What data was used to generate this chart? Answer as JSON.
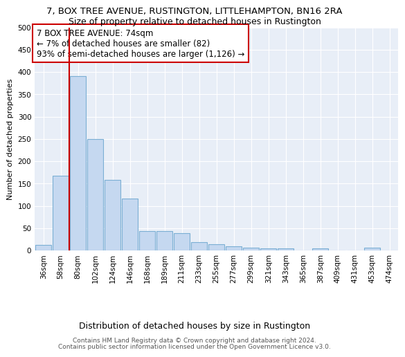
{
  "title1": "7, BOX TREE AVENUE, RUSTINGTON, LITTLEHAMPTON, BN16 2RA",
  "title2": "Size of property relative to detached houses in Rustington",
  "xlabel": "Distribution of detached houses by size in Rustington",
  "ylabel": "Number of detached properties",
  "categories": [
    "36sqm",
    "58sqm",
    "80sqm",
    "102sqm",
    "124sqm",
    "146sqm",
    "168sqm",
    "189sqm",
    "211sqm",
    "233sqm",
    "255sqm",
    "277sqm",
    "299sqm",
    "321sqm",
    "343sqm",
    "365sqm",
    "387sqm",
    "409sqm",
    "431sqm",
    "453sqm",
    "474sqm"
  ],
  "values": [
    13,
    167,
    390,
    250,
    158,
    117,
    43,
    43,
    38,
    19,
    14,
    9,
    6,
    5,
    4,
    0,
    5,
    0,
    0,
    6,
    0
  ],
  "bar_color": "#c5d8f0",
  "bar_edge_color": "#7bafd4",
  "vline_x_index": 2,
  "vline_color": "#cc0000",
  "annotation_text": "7 BOX TREE AVENUE: 74sqm\n← 7% of detached houses are smaller (82)\n93% of semi-detached houses are larger (1,126) →",
  "annotation_box_color": "#ffffff",
  "annotation_box_edge": "#cc0000",
  "ylim": [
    0,
    500
  ],
  "yticks": [
    0,
    50,
    100,
    150,
    200,
    250,
    300,
    350,
    400,
    450,
    500
  ],
  "bg_color": "#e8eef7",
  "footer1": "Contains HM Land Registry data © Crown copyright and database right 2024.",
  "footer2": "Contains public sector information licensed under the Open Government Licence v3.0.",
  "title1_fontsize": 9.5,
  "title2_fontsize": 9,
  "xlabel_fontsize": 9,
  "ylabel_fontsize": 8,
  "tick_fontsize": 7.5,
  "annotation_fontsize": 8.5,
  "footer_fontsize": 6.5
}
